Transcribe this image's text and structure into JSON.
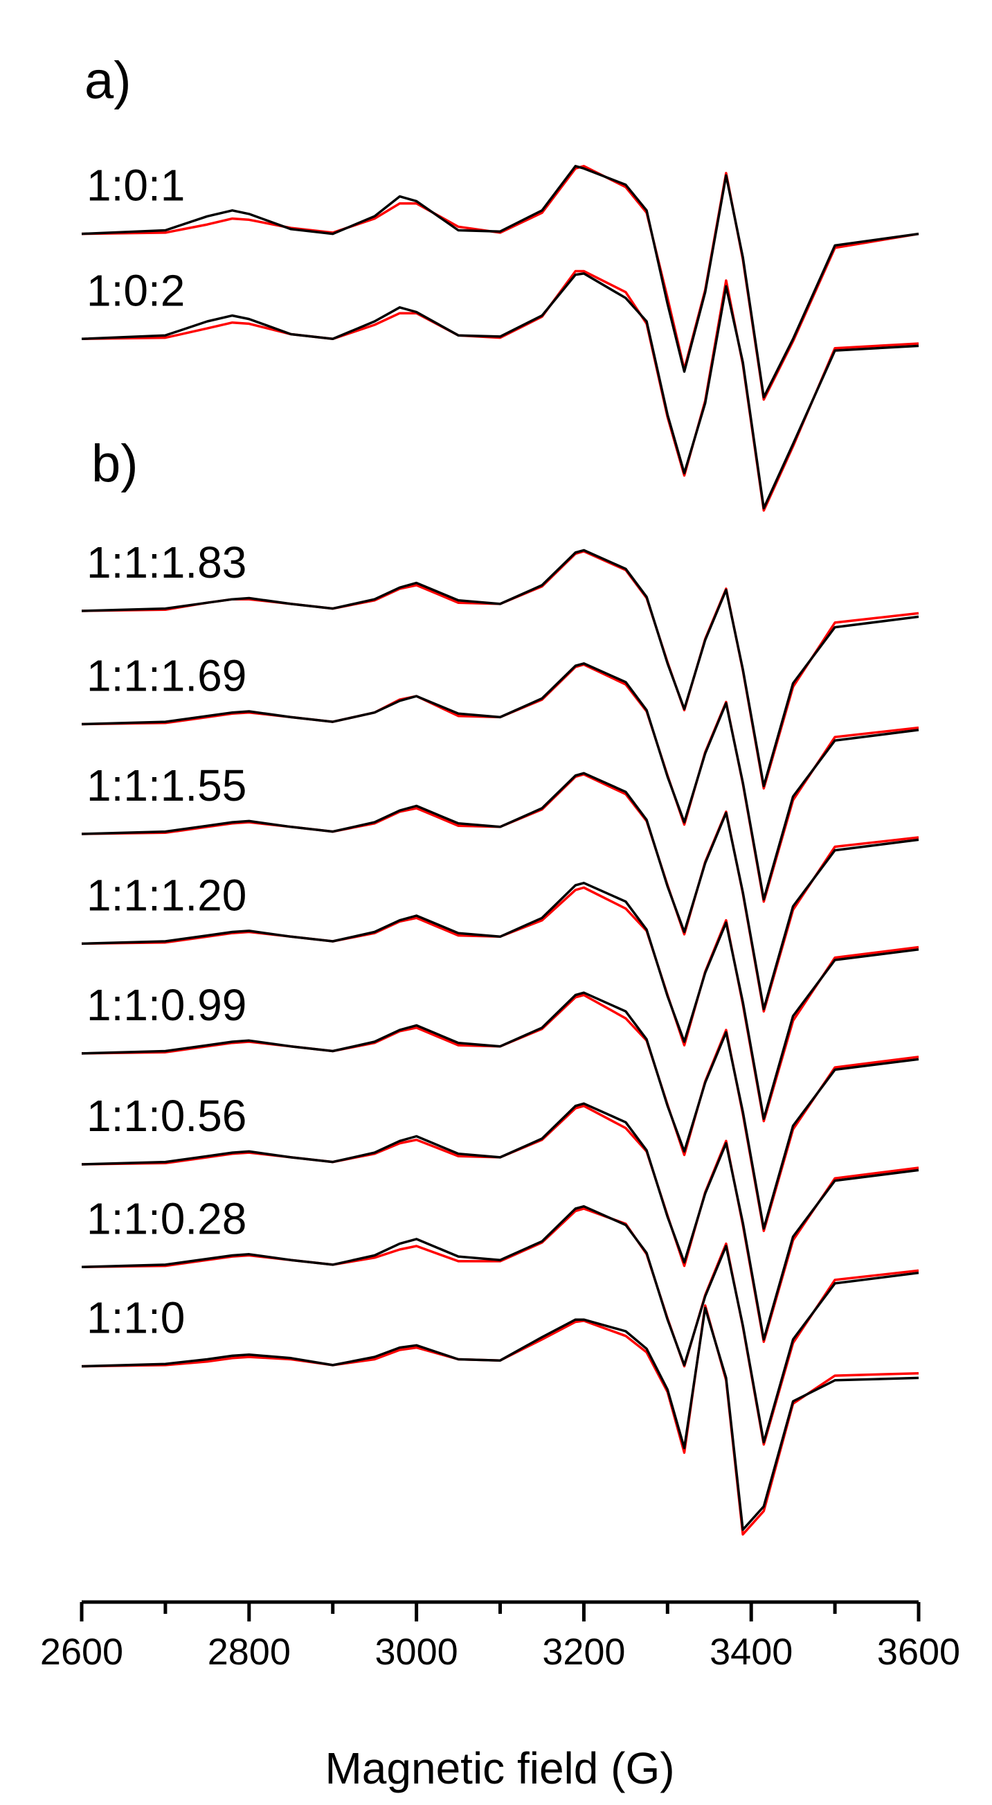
{
  "chart_data": {
    "type": "line",
    "annotations": [
      "a)",
      "b)"
    ],
    "xlabel": "Magnetic field (G)",
    "xlim": [
      2600,
      3600
    ],
    "xticks": [
      2600,
      2800,
      3000,
      3200,
      3400,
      3600
    ],
    "xminorticks": [
      2700,
      2900,
      3100,
      3300,
      3500
    ],
    "ylim": [
      0,
      1250
    ],
    "x": [
      2600,
      2700,
      2750,
      2780,
      2800,
      2850,
      2900,
      2950,
      2980,
      3000,
      3050,
      3100,
      3150,
      3190,
      3200,
      3250,
      3275,
      3300,
      3320,
      3345,
      3370,
      3390,
      3415,
      3450,
      3500,
      3600
    ],
    "series": [
      {
        "name": "1:0:1",
        "color": "#000000",
        "values": [
          1150,
          1153,
          1165,
          1170,
          1167,
          1154,
          1150,
          1165,
          1182,
          1178,
          1153,
          1152,
          1170,
          1208,
          1206,
          1192,
          1170,
          1090,
          1032,
          1100,
          1200,
          1130,
          1010,
          1060,
          1140,
          1150
        ],
        "fit": {
          "color": "#ff0000",
          "values": [
            1150,
            1151,
            1158,
            1163,
            1162,
            1155,
            1151,
            1163,
            1176,
            1176,
            1156,
            1151,
            1168,
            1206,
            1208,
            1190,
            1168,
            1095,
            1034,
            1102,
            1202,
            1128,
            1008,
            1058,
            1138,
            1150
          ]
        }
      },
      {
        "name": "1:0:2",
        "color": "#000000",
        "values": [
          1060,
          1063,
          1075,
          1080,
          1077,
          1064,
          1060,
          1075,
          1087,
          1083,
          1063,
          1062,
          1080,
          1115,
          1116,
          1095,
          1075,
          995,
          945,
          1005,
          1105,
          1040,
          915,
          970,
          1050,
          1054
        ],
        "fit": {
          "color": "#ff0000",
          "values": [
            1060,
            1061,
            1069,
            1074,
            1073,
            1064,
            1060,
            1072,
            1082,
            1082,
            1063,
            1061,
            1079,
            1118,
            1118,
            1100,
            1073,
            993,
            943,
            1007,
            1110,
            1038,
            913,
            968,
            1052,
            1056
          ]
        }
      },
      {
        "name": "1:1:1.83",
        "color": "#000000",
        "values": [
          827,
          829,
          834,
          837,
          838,
          833,
          829,
          837,
          847,
          851,
          836,
          833,
          849,
          877,
          879,
          863,
          839,
          782,
          743,
          802,
          845,
          777,
          677,
          765,
          813,
          822
        ],
        "fit": {
          "color": "#ff0000",
          "values": [
            827,
            828,
            834,
            837,
            837,
            833,
            829,
            836,
            846,
            849,
            834,
            833,
            848,
            876,
            878,
            862,
            838,
            783,
            742,
            803,
            846,
            776,
            675,
            762,
            817,
            825
          ]
        }
      },
      {
        "name": "1:1:1.69",
        "color": "#000000",
        "values": [
          730,
          732,
          737,
          740,
          741,
          736,
          732,
          740,
          750,
          754,
          739,
          736,
          752,
          780,
          782,
          766,
          742,
          685,
          646,
          705,
          748,
          680,
          580,
          668,
          716,
          725
        ],
        "fit": {
          "color": "#ff0000",
          "values": [
            730,
            731,
            736,
            739,
            740,
            736,
            732,
            740,
            751,
            754,
            737,
            736,
            751,
            779,
            781,
            764,
            741,
            686,
            644,
            706,
            749,
            679,
            578,
            665,
            719,
            727
          ]
        }
      },
      {
        "name": "1:1:1.55",
        "color": "#000000",
        "values": [
          636,
          638,
          643,
          646,
          647,
          642,
          638,
          646,
          656,
          660,
          645,
          642,
          658,
          686,
          688,
          672,
          648,
          591,
          552,
          611,
          654,
          586,
          486,
          574,
          622,
          631
        ],
        "fit": {
          "color": "#ff0000",
          "values": [
            636,
            637,
            642,
            645,
            646,
            642,
            638,
            645,
            655,
            658,
            643,
            642,
            657,
            685,
            687,
            670,
            647,
            592,
            550,
            612,
            655,
            585,
            484,
            571,
            625,
            633
          ]
        }
      },
      {
        "name": "1:1:1.20",
        "color": "#000000",
        "values": [
          542,
          544,
          549,
          552,
          553,
          548,
          544,
          552,
          562,
          566,
          551,
          548,
          564,
          592,
          594,
          578,
          554,
          497,
          458,
          517,
          560,
          492,
          392,
          480,
          528,
          537
        ],
        "fit": {
          "color": "#ff0000",
          "values": [
            542,
            543,
            548,
            551,
            552,
            548,
            544,
            551,
            561,
            564,
            549,
            548,
            562,
            588,
            590,
            572,
            553,
            498,
            455,
            518,
            562,
            490,
            390,
            476,
            530,
            539
          ]
        }
      },
      {
        "name": "1:1:0.99",
        "color": "#000000",
        "values": [
          448,
          450,
          455,
          458,
          459,
          454,
          450,
          458,
          468,
          472,
          457,
          454,
          470,
          498,
          500,
          484,
          460,
          403,
          364,
          423,
          466,
          398,
          298,
          386,
          434,
          443
        ],
        "fit": {
          "color": "#ff0000",
          "values": [
            448,
            449,
            454,
            457,
            458,
            454,
            450,
            457,
            467,
            470,
            455,
            454,
            469,
            496,
            498,
            478,
            459,
            404,
            361,
            424,
            468,
            396,
            296,
            383,
            436,
            445
          ]
        }
      },
      {
        "name": "1:1:0.56",
        "color": "#000000",
        "values": [
          353,
          355,
          360,
          363,
          364,
          359,
          355,
          363,
          373,
          377,
          362,
          359,
          375,
          403,
          405,
          389,
          365,
          308,
          269,
          328,
          371,
          303,
          203,
          291,
          339,
          348
        ],
        "fit": {
          "color": "#ff0000",
          "values": [
            353,
            354,
            359,
            362,
            363,
            359,
            355,
            362,
            371,
            374,
            360,
            359,
            374,
            401,
            403,
            384,
            364,
            309,
            266,
            329,
            373,
            301,
            201,
            288,
            341,
            350
          ]
        }
      },
      {
        "name": "1:1:0.28",
        "color": "#000000",
        "values": [
          265,
          267,
          272,
          275,
          276,
          271,
          267,
          275,
          285,
          289,
          274,
          271,
          287,
          315,
          317,
          301,
          277,
          220,
          181,
          240,
          283,
          215,
          115,
          203,
          251,
          260
        ],
        "fit": {
          "color": "#ff0000",
          "values": [
            265,
            266,
            271,
            274,
            275,
            271,
            267,
            273,
            280,
            283,
            270,
            270,
            286,
            313,
            315,
            302,
            276,
            221,
            180,
            241,
            285,
            214,
            113,
            200,
            254,
            262
          ]
        }
      },
      {
        "name": "1:1:0",
        "color": "#000000",
        "values": [
          180,
          182,
          186,
          189,
          190,
          187,
          181,
          188,
          196,
          198,
          186,
          185,
          205,
          220,
          220,
          210,
          195,
          160,
          110,
          230,
          170,
          40,
          60,
          150,
          168,
          170
        ],
        "fit": {
          "color": "#ff0000",
          "values": [
            180,
            181,
            184,
            187,
            188,
            186,
            181,
            186,
            194,
            196,
            186,
            185,
            203,
            218,
            219,
            206,
            192,
            158,
            106,
            232,
            168,
            36,
            56,
            148,
            172,
            174
          ]
        }
      }
    ]
  }
}
